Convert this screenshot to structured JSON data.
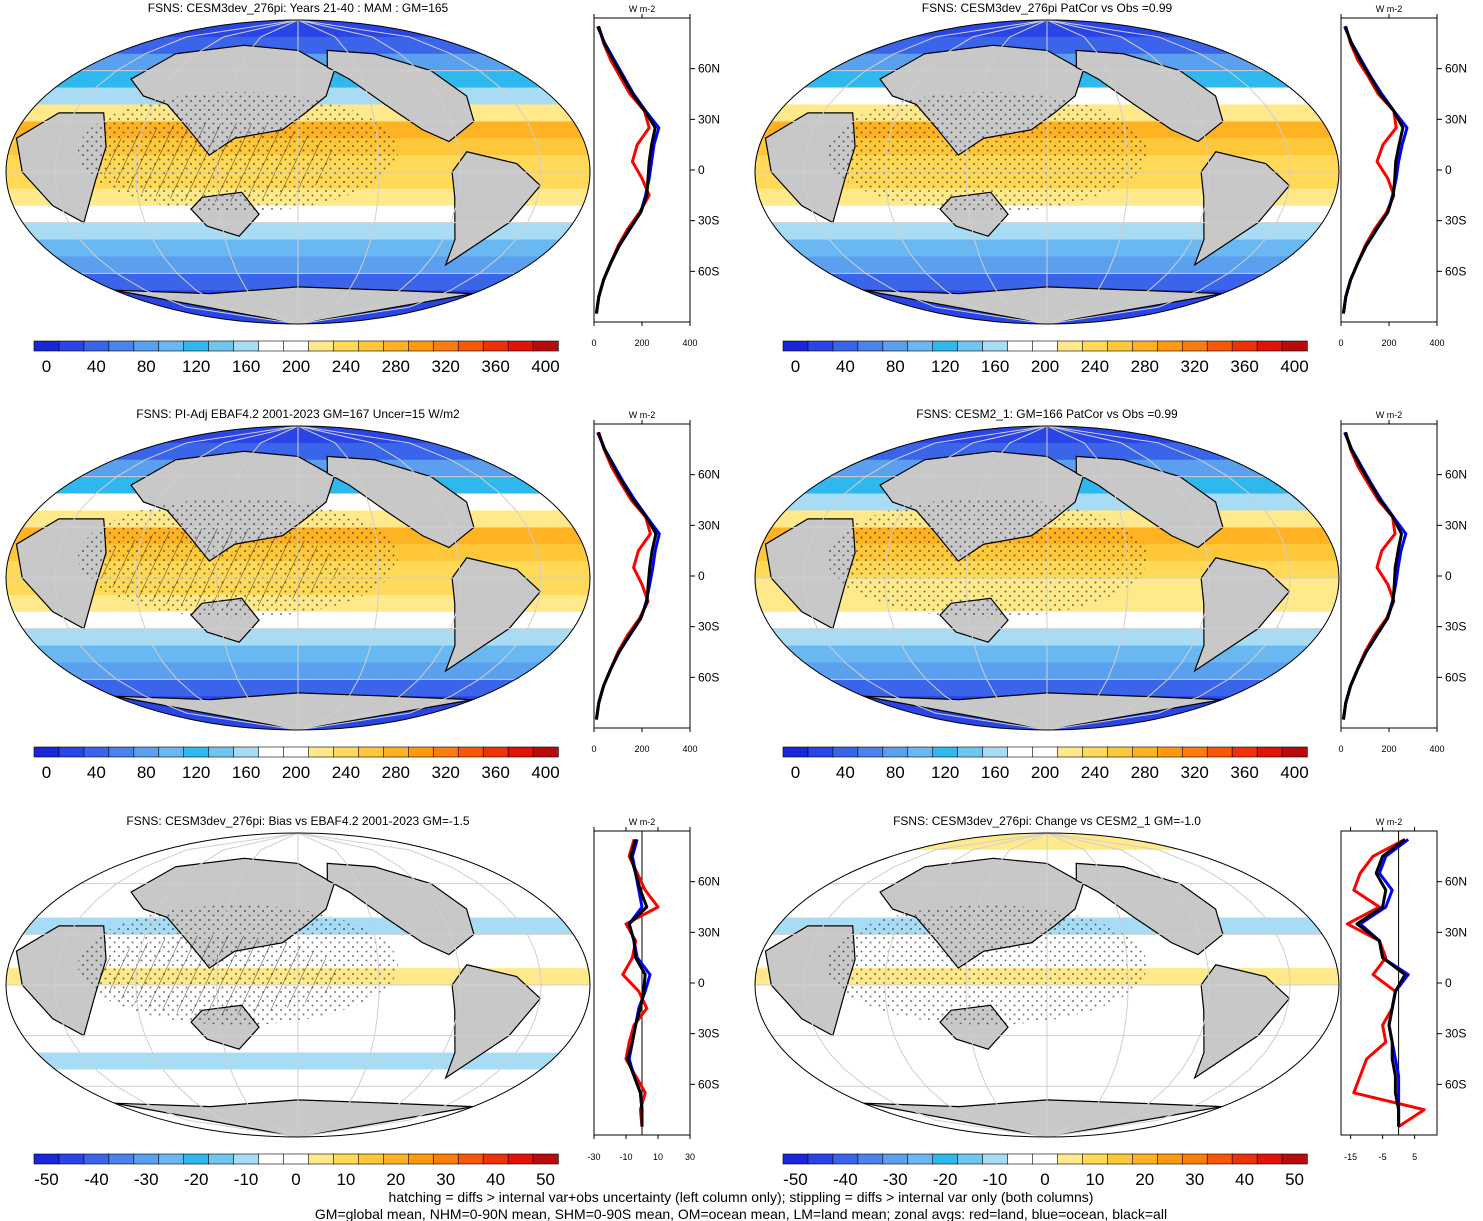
{
  "chart_data": [
    {
      "type": "heatmap",
      "title": "FSNS: CESM3dev_276pi: Years 21-40 : MAM : GM=165",
      "colorbar": {
        "ticks": [
          "0",
          "40",
          "80",
          "120",
          "160",
          "200",
          "240",
          "280",
          "320",
          "360",
          "400"
        ],
        "range": [
          0,
          400
        ]
      },
      "zonal_profile": {
        "unit": "W m-2",
        "xticks": [
          "0",
          "200",
          "400"
        ],
        "xlim": [
          0,
          400
        ],
        "yticks": [
          "60N",
          "30N",
          "0",
          "30S",
          "60S"
        ],
        "lat": [
          85,
          75,
          65,
          55,
          45,
          35,
          25,
          15,
          5,
          -5,
          -15,
          -25,
          -35,
          -45,
          -55,
          -65,
          -75,
          -85
        ],
        "series": [
          {
            "name": "land",
            "color": "#ff0000",
            "values": [
              20,
              40,
              70,
              110,
              150,
              210,
              230,
              180,
              160,
              200,
              230,
              190,
              140,
              100,
              70,
              40,
              20,
              10
            ]
          },
          {
            "name": "ocean",
            "color": "#0000ff",
            "values": [
              15,
              45,
              85,
              125,
              165,
              215,
              270,
              250,
              240,
              230,
              215,
              195,
              150,
              105,
              70,
              40,
              20,
              10
            ]
          },
          {
            "name": "all",
            "color": "#000000",
            "values": [
              18,
              43,
              80,
              120,
              160,
              212,
              255,
              240,
              230,
              225,
              220,
              195,
              148,
              104,
              70,
              40,
              20,
              10
            ]
          }
        ]
      }
    },
    {
      "type": "heatmap",
      "title": "FSNS: CESM3dev_276pi PatCor vs Obs =0.99",
      "colorbar": {
        "ticks": [
          "0",
          "40",
          "80",
          "120",
          "160",
          "200",
          "240",
          "280",
          "320",
          "360",
          "400"
        ],
        "range": [
          0,
          400
        ]
      },
      "zonal_profile": {
        "unit": "W m-2",
        "xticks": [
          "0",
          "200",
          "400"
        ],
        "xlim": [
          0,
          400
        ],
        "yticks": [
          "60N",
          "30N",
          "0",
          "30S",
          "60S"
        ],
        "lat": [
          85,
          75,
          65,
          55,
          45,
          35,
          25,
          15,
          5,
          -5,
          -15,
          -25,
          -35,
          -45,
          -55,
          -65,
          -75,
          -85
        ],
        "series": [
          {
            "name": "land",
            "color": "#ff0000",
            "values": [
              20,
              40,
              70,
              115,
              155,
              220,
              230,
              175,
              150,
              195,
              220,
              190,
              140,
              100,
              70,
              40,
              20,
              10
            ]
          },
          {
            "name": "ocean",
            "color": "#0000ff",
            "values": [
              15,
              45,
              85,
              125,
              170,
              220,
              275,
              255,
              240,
              230,
              215,
              195,
              150,
              105,
              70,
              40,
              20,
              10
            ]
          },
          {
            "name": "all",
            "color": "#000000",
            "values": [
              18,
              43,
              80,
              122,
              163,
              220,
              258,
              242,
              228,
              224,
              218,
              195,
              148,
              104,
              70,
              40,
              20,
              10
            ]
          }
        ]
      }
    },
    {
      "type": "heatmap",
      "title": "FSNS: PI-Adj EBAF4.2 2001-2023 GM=167 Uncer=15 W/m2",
      "colorbar": {
        "ticks": [
          "0",
          "40",
          "80",
          "120",
          "160",
          "200",
          "240",
          "280",
          "320",
          "360",
          "400"
        ],
        "range": [
          0,
          400
        ]
      },
      "zonal_profile": {
        "unit": "W m-2",
        "xticks": [
          "0",
          "200",
          "400"
        ],
        "xlim": [
          0,
          400
        ],
        "yticks": [
          "60N",
          "30N",
          "0",
          "30S",
          "60S"
        ],
        "lat": [
          85,
          75,
          65,
          55,
          45,
          35,
          25,
          15,
          5,
          -5,
          -15,
          -25,
          -35,
          -45,
          -55,
          -65,
          -75,
          -85
        ],
        "series": [
          {
            "name": "land",
            "color": "#ff0000",
            "values": [
              20,
              42,
              72,
              112,
              155,
              215,
              235,
              185,
              165,
              200,
              225,
              190,
              140,
              100,
              70,
              40,
              20,
              10
            ]
          },
          {
            "name": "ocean",
            "color": "#0000ff",
            "values": [
              15,
              45,
              85,
              125,
              170,
              220,
              272,
              255,
              245,
              232,
              218,
              196,
              150,
              105,
              70,
              40,
              20,
              10
            ]
          },
          {
            "name": "all",
            "color": "#000000",
            "values": [
              18,
              44,
              80,
              120,
              163,
              218,
              258,
              242,
              232,
              226,
              221,
              195,
              148,
              104,
              70,
              40,
              20,
              10
            ]
          }
        ]
      }
    },
    {
      "type": "heatmap",
      "title": "FSNS: CESM2_1: GM=166 PatCor vs Obs =0.99",
      "colorbar": {
        "ticks": [
          "0",
          "40",
          "80",
          "120",
          "160",
          "200",
          "240",
          "280",
          "320",
          "360",
          "400"
        ],
        "range": [
          0,
          400
        ]
      },
      "zonal_profile": {
        "unit": "W m-2",
        "xticks": [
          "0",
          "200",
          "400"
        ],
        "xlim": [
          0,
          400
        ],
        "yticks": [
          "60N",
          "30N",
          "0",
          "30S",
          "60S"
        ],
        "lat": [
          85,
          75,
          65,
          55,
          45,
          35,
          25,
          15,
          5,
          -5,
          -15,
          -25,
          -35,
          -45,
          -55,
          -65,
          -75,
          -85
        ],
        "series": [
          {
            "name": "land",
            "color": "#ff0000",
            "values": [
              20,
              40,
              70,
              112,
              155,
              215,
              225,
              170,
              150,
              195,
              220,
              190,
              140,
              100,
              70,
              40,
              20,
              10
            ]
          },
          {
            "name": "ocean",
            "color": "#0000ff",
            "values": [
              15,
              45,
              85,
              125,
              168,
              218,
              270,
              250,
              238,
              228,
              214,
              194,
              150,
              105,
              70,
              40,
              20,
              10
            ]
          },
          {
            "name": "all",
            "color": "#000000",
            "values": [
              18,
              43,
              80,
              121,
              162,
              216,
              252,
              238,
              226,
              222,
              217,
              194,
              148,
              104,
              70,
              40,
              20,
              10
            ]
          }
        ]
      }
    },
    {
      "type": "heatmap",
      "title": "FSNS: CESM3dev_276pi: Bias vs EBAF4.2 2001-2023 GM=-1.5",
      "colorbar": {
        "ticks": [
          "-50",
          "-40",
          "-30",
          "-20",
          "-10",
          "0",
          "10",
          "20",
          "30",
          "40",
          "50"
        ],
        "range": [
          -50,
          50
        ]
      },
      "zonal_profile": {
        "unit": "W m-2",
        "xticks": [
          "-30",
          "-10",
          "10",
          "30"
        ],
        "xlim": [
          -30,
          30
        ],
        "yticks": [
          "60N",
          "30N",
          "0",
          "30S",
          "60S"
        ],
        "lat": [
          85,
          75,
          65,
          55,
          45,
          35,
          25,
          15,
          5,
          -5,
          -15,
          -25,
          -35,
          -45,
          -55,
          -65,
          -75,
          -85
        ],
        "series": [
          {
            "name": "land",
            "color": "#ff0000",
            "values": [
              -5,
              -8,
              -3,
              2,
              10,
              -10,
              -4,
              -6,
              -12,
              -2,
              3,
              -5,
              -8,
              -10,
              -4,
              2,
              -1,
              0
            ]
          },
          {
            "name": "ocean",
            "color": "#0000ff",
            "values": [
              -3,
              -6,
              -4,
              -2,
              0,
              -8,
              -5,
              -3,
              5,
              2,
              -2,
              -4,
              -6,
              -8,
              -5,
              -1,
              0,
              0
            ]
          },
          {
            "name": "all",
            "color": "#000000",
            "values": [
              -4,
              -7,
              -4,
              -1,
              3,
              -8,
              -5,
              -4,
              2,
              1,
              -1,
              -4,
              -6,
              -9,
              -5,
              -1,
              0,
              0
            ]
          }
        ]
      }
    },
    {
      "type": "heatmap",
      "title": "FSNS: CESM3dev_276pi: Change vs CESM2_1 GM=-1.0",
      "colorbar": {
        "ticks": [
          "-50",
          "-40",
          "-30",
          "-20",
          "-10",
          "0",
          "10",
          "20",
          "30",
          "40",
          "50"
        ],
        "range": [
          -50,
          50
        ]
      },
      "zonal_profile": {
        "unit": "W m-2",
        "xticks": [
          "-15",
          "-5",
          "5"
        ],
        "xlim": [
          -18,
          12
        ],
        "yticks": [
          "60N",
          "30N",
          "0",
          "30S",
          "60S"
        ],
        "lat": [
          85,
          75,
          65,
          55,
          45,
          35,
          25,
          15,
          5,
          -5,
          -15,
          -25,
          -35,
          -45,
          -55,
          -65,
          -75,
          -85
        ],
        "series": [
          {
            "name": "land",
            "color": "#ff0000",
            "values": [
              2,
              -8,
              -12,
              -14,
              -6,
              -16,
              -6,
              -4,
              -8,
              -1,
              -2,
              -5,
              -4,
              -10,
              -12,
              -14,
              8,
              0
            ]
          },
          {
            "name": "ocean",
            "color": "#0000ff",
            "values": [
              3,
              -4,
              -6,
              -2,
              -4,
              -12,
              -6,
              -5,
              3,
              -1,
              -2,
              -3,
              -2,
              -1,
              0,
              0,
              0,
              0
            ]
          },
          {
            "name": "all",
            "color": "#000000",
            "values": [
              2,
              -5,
              -7,
              -4,
              -5,
              -13,
              -6,
              -5,
              2,
              -1,
              -2,
              -3,
              -2,
              -2,
              -1,
              -1,
              0,
              0
            ]
          }
        ]
      }
    }
  ],
  "colormap": [
    "#1a26d9",
    "#2a45e6",
    "#3a64ea",
    "#4b82ec",
    "#5aa0ef",
    "#69b8f2",
    "#2fb8ee",
    "#6fc7f0",
    "#a8dcf5",
    "#ffffff",
    "#ffffff",
    "#ffe98a",
    "#ffd957",
    "#ffc73a",
    "#ffb222",
    "#ff9a10",
    "#fd7d0a",
    "#f65808",
    "#ee3208",
    "#e21206",
    "#b80c0c"
  ],
  "land_color": "#c8c8c8",
  "footer": {
    "line1": "hatching = diffs > internal var+obs uncertainty (left column only); stippling = diffs > internal var only (both columns)",
    "line2": "GM=global mean, NHM=0-90N mean, SHM=0-90S mean, OM=ocean mean, LM=land mean; zonal avgs: red=land, blue=ocean, black=all"
  }
}
